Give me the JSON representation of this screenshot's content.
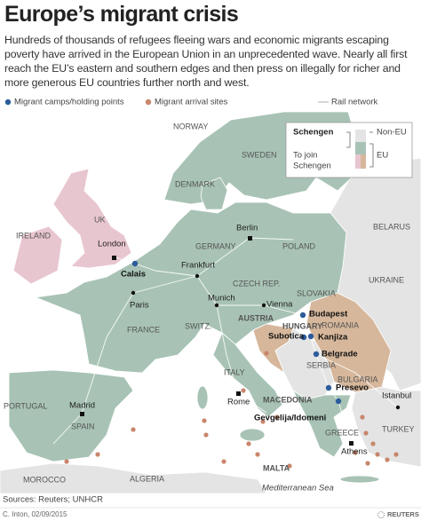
{
  "header": {
    "title": "Europe’s migrant crisis",
    "description": "Hundreds of thousands of refugees fleeing wars and economic migrants escaping poverty have arrived in the European Union in an unprecedented wave. Nearly all first reach the EU’s eastern and southern edges and then press on illegally for richer and more generous EU countries further north and west."
  },
  "legend": {
    "items": [
      "Migrant camps/holding points",
      "Migrant arrival sites",
      "Rail network"
    ]
  },
  "key": {
    "schengen": "Schengen",
    "non_eu": "Non-EU",
    "to_join": [
      "To join",
      "Schengen"
    ],
    "eu": "EU"
  },
  "countries": [
    "NORWAY",
    "SWEDEN",
    "DENMARK",
    "IRELAND",
    "UK",
    "GERMANY",
    "POLAND",
    "BELARUS",
    "UKRAINE",
    "CZECH REP.",
    "SLOVAKIA",
    "AUSTRIA",
    "HUNGARY",
    "ROMANIA",
    "SWITZ.",
    "FRANCE",
    "ITALY",
    "SERBIA",
    "BULGARIA",
    "MACEDONIA",
    "GREECE",
    "TURKEY",
    "PORTUGAL",
    "SPAIN",
    "MOROCCO",
    "ALGERIA",
    "MALTA"
  ],
  "cities": [
    "London",
    "Berlin",
    "Frankfurt",
    "Paris",
    "Munich",
    "Vienna",
    "Rome",
    "Madrid",
    "Athens",
    "Istanbul"
  ],
  "camps": [
    "Calais",
    "Budapest",
    "Subotica",
    "Kanjiza",
    "Belgrade",
    "Presevo",
    "Gevgelija/Idomeni"
  ],
  "sea": "Mediterranean Sea",
  "footer": {
    "sources": "Sources: Reuters; UNHCR",
    "credit": "C. Inton, 02/09/2015",
    "brand": "REUTERS"
  }
}
